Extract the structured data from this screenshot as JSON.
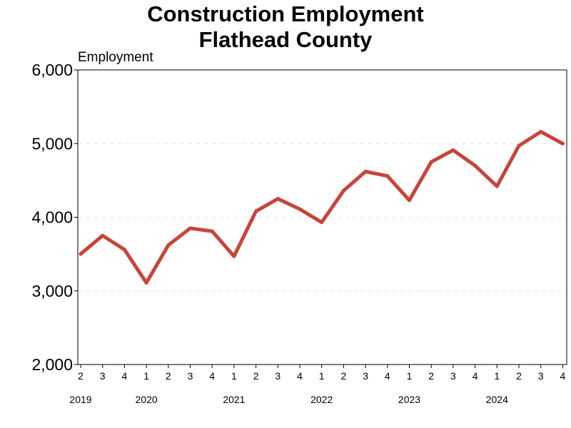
{
  "chart_data": {
    "type": "line",
    "title_lines": [
      "Construction Employment",
      "Flathead County"
    ],
    "ylabel": "Employment",
    "xlabel": "",
    "ylim": [
      2000,
      6000
    ],
    "yticks": [
      2000,
      3000,
      4000,
      5000,
      6000
    ],
    "ytick_labels": [
      "2,000",
      "3,000",
      "4,000",
      "5,000",
      "6,000"
    ],
    "grid": "horizontal dashed",
    "legend": "none",
    "line_color": "#C8443A",
    "x": [
      "2",
      "3",
      "4",
      "1",
      "2",
      "3",
      "4",
      "1",
      "2",
      "3",
      "4",
      "1",
      "2",
      "3",
      "4",
      "1",
      "2",
      "3",
      "4",
      "1",
      "2",
      "3",
      "4"
    ],
    "years": [
      {
        "label": "2019",
        "quarter_index": 0
      },
      {
        "label": "2020",
        "quarter_index": 3
      },
      {
        "label": "2021",
        "quarter_index": 7
      },
      {
        "label": "2022",
        "quarter_index": 11
      },
      {
        "label": "2023",
        "quarter_index": 15
      },
      {
        "label": "2024",
        "quarter_index": 19
      }
    ],
    "series": [
      {
        "values": [
          3500,
          3750,
          3560,
          3110,
          3620,
          3850,
          3810,
          3470,
          4080,
          4250,
          4110,
          3930,
          4360,
          4620,
          4560,
          4230,
          4750,
          4910,
          4700,
          4420,
          4970,
          5160,
          5000
        ]
      }
    ]
  }
}
